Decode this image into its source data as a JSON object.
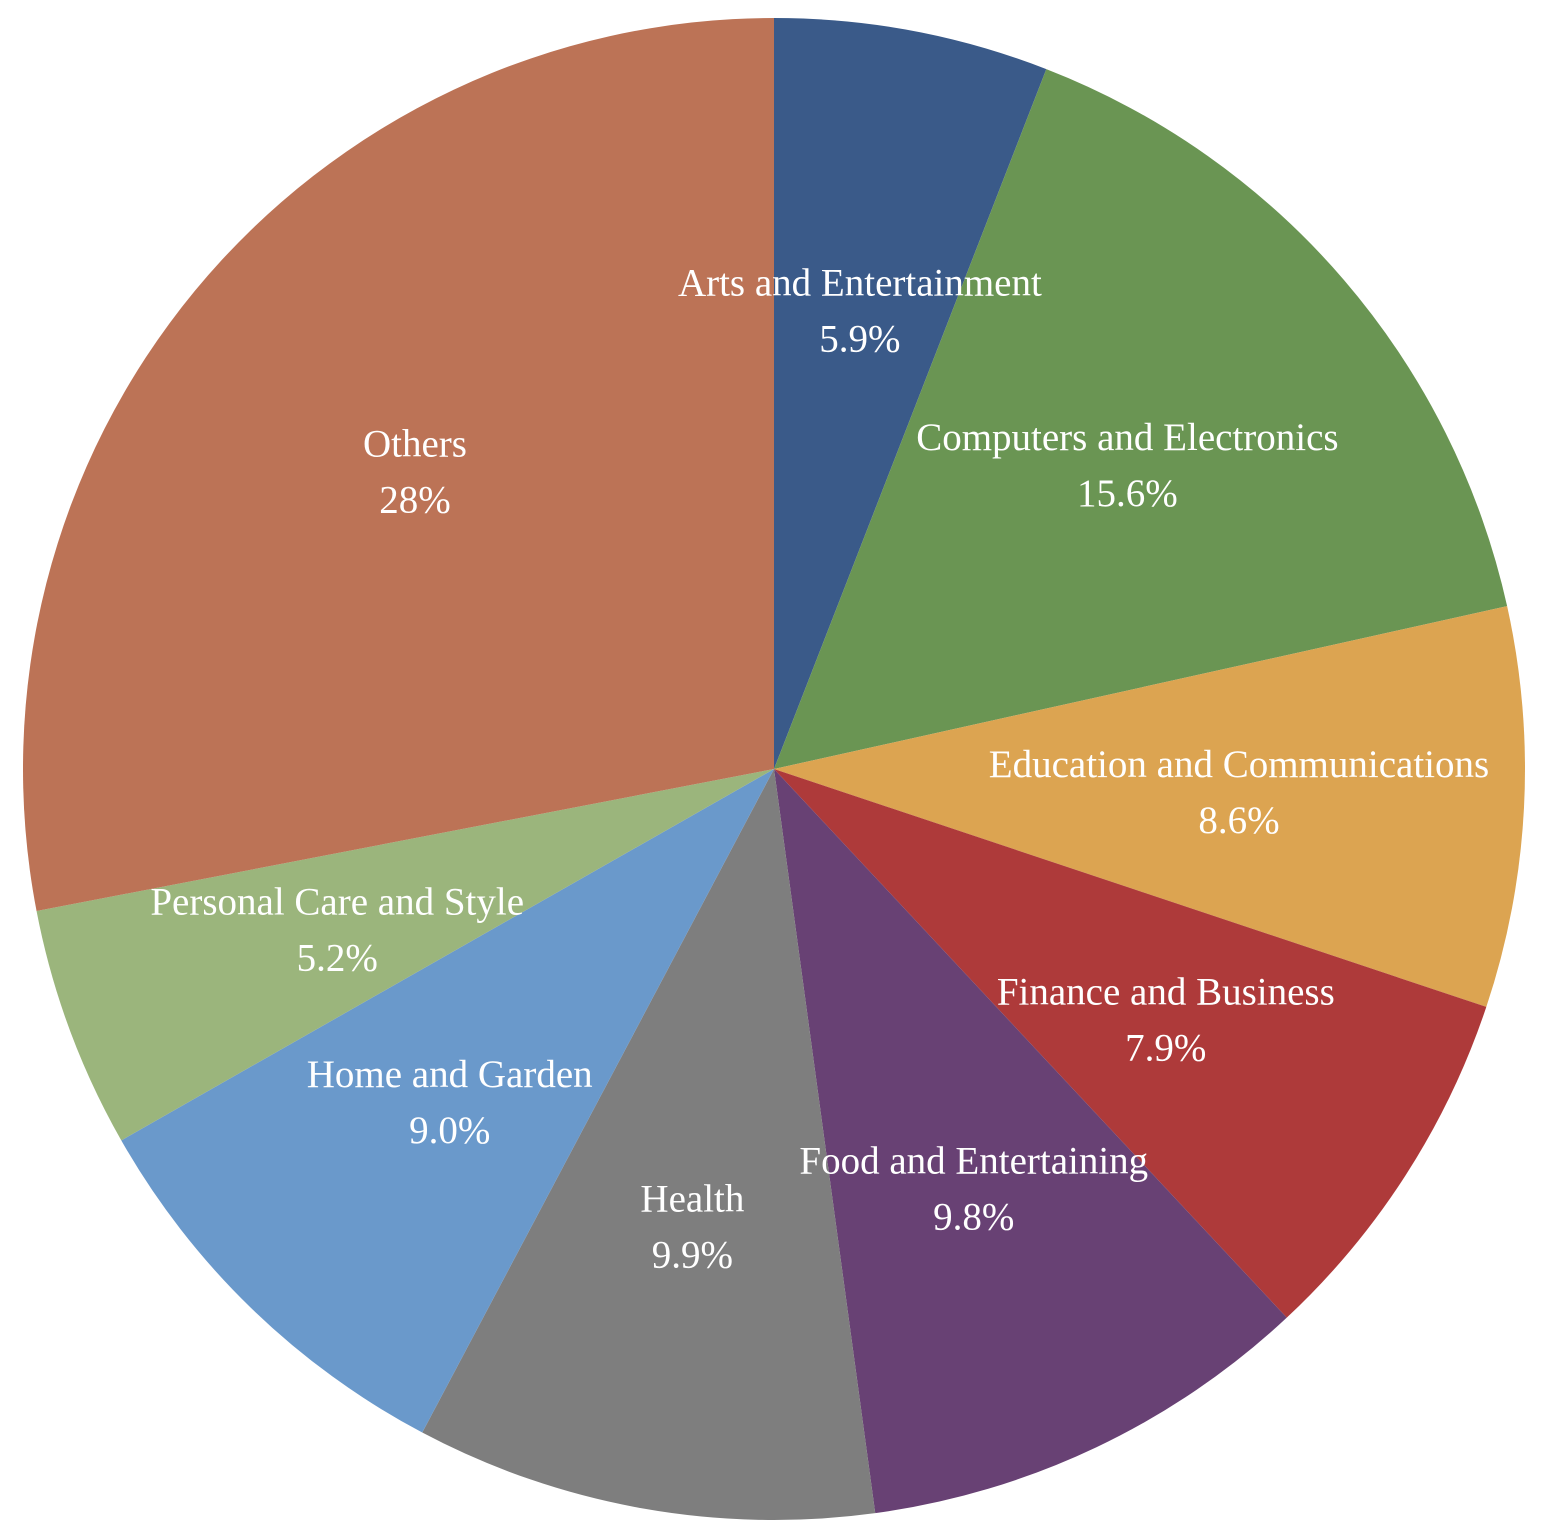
{
  "chart_data": {
    "type": "pie",
    "title": "",
    "start_angle_deg": 0,
    "direction": "clockwise",
    "slices": [
      {
        "label": "Arts and Entertainment",
        "value": 5.9,
        "display": "5.9%",
        "color": "#3A5A89"
      },
      {
        "label": "Computers and Electronics",
        "value": 15.6,
        "display": "15.6%",
        "color": "#6A9553"
      },
      {
        "label": "Education and Communications",
        "value": 8.6,
        "display": "8.6%",
        "color": "#DCA451"
      },
      {
        "label": "Finance and Business",
        "value": 7.9,
        "display": "7.9%",
        "color": "#AE3A3A"
      },
      {
        "label": "Food and Entertaining",
        "value": 9.8,
        "display": "9.8%",
        "color": "#684174"
      },
      {
        "label": "Health",
        "value": 9.9,
        "display": "9.9%",
        "color": "#7E7E7E"
      },
      {
        "label": "Home and Garden",
        "value": 9.0,
        "display": "9.0%",
        "color": "#6A99CB"
      },
      {
        "label": "Personal Care and Style",
        "value": 5.2,
        "display": "5.2%",
        "color": "#9BB57C"
      },
      {
        "label": "Others",
        "value": 28,
        "display": "28%",
        "color": "#BC7356"
      }
    ]
  }
}
